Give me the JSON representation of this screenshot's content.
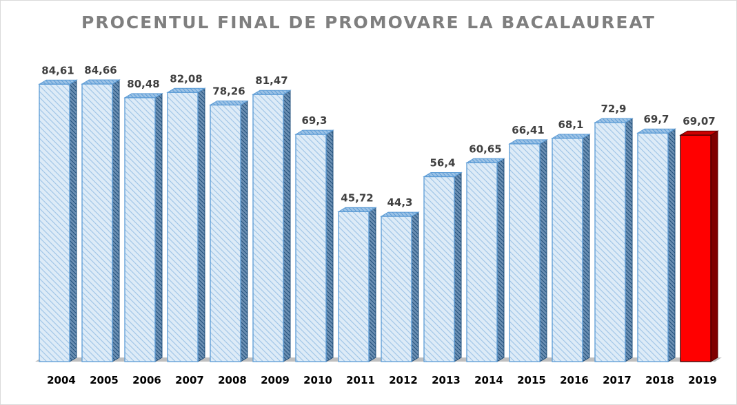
{
  "chart_data": {
    "type": "bar",
    "title": "PROCENTUL FINAL DE PROMOVARE LA BACALAUREAT",
    "xlabel": "",
    "ylabel": "",
    "categories": [
      "2004",
      "2005",
      "2006",
      "2007",
      "2008",
      "2009",
      "2010",
      "2011",
      "2012",
      "2013",
      "2014",
      "2015",
      "2016",
      "2017",
      "2018",
      "2019"
    ],
    "values": [
      84.61,
      84.66,
      80.48,
      82.08,
      78.26,
      81.47,
      69.3,
      45.72,
      44.3,
      56.4,
      60.65,
      66.41,
      68.1,
      72.9,
      69.7,
      69.07
    ],
    "value_labels": [
      "84,61",
      "84,66",
      "80,48",
      "82,08",
      "78,26",
      "81,47",
      "69,3",
      "45,72",
      "44,3",
      "56,4",
      "60,65",
      "66,41",
      "68,1",
      "72,9",
      "69,7",
      "69,07"
    ],
    "highlight_category": "2019",
    "ylim": [
      0,
      100
    ],
    "grid": false,
    "legend": "none",
    "style": "3d-columns",
    "colors": {
      "bar_fill": "#ddebf7",
      "bar_hatch": "#9dc3e6",
      "bar_outline": "#5b9bd5",
      "bar_side": "#1f4e79",
      "highlight_fill": "#ff0000",
      "highlight_side": "#7f0000",
      "floor": "#bfbfbf",
      "title": "#7f7f7f",
      "value_label": "#404040",
      "category_label": "#000000"
    }
  }
}
